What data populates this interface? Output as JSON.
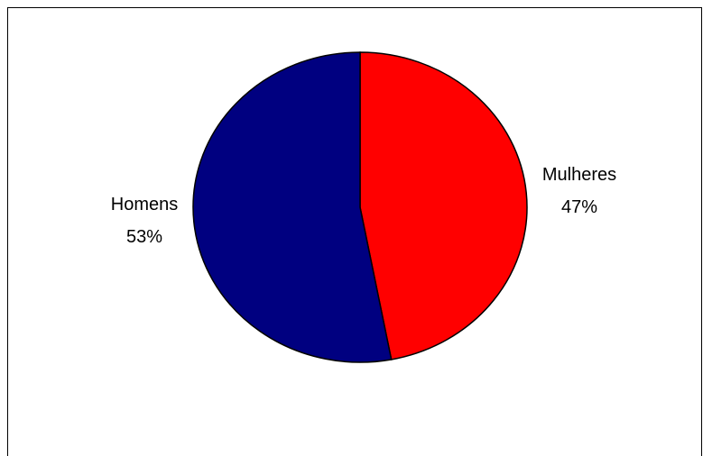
{
  "chart_data": {
    "type": "pie",
    "title": "",
    "slices": [
      {
        "label": "Mulheres",
        "value": 47,
        "percent_label": "47%",
        "color": "#ff0000"
      },
      {
        "label": "Homens",
        "value": 53,
        "percent_label": "53%",
        "color": "#000080"
      }
    ],
    "start_angle": "12 o'clock",
    "direction": "clockwise",
    "legend": "none",
    "labels": "outside, category and percent"
  }
}
